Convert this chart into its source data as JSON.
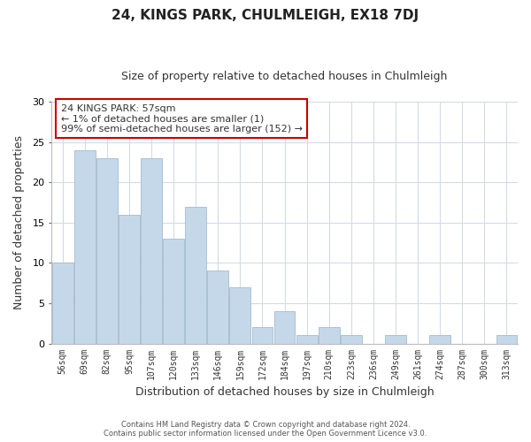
{
  "title": "24, KINGS PARK, CHULMLEIGH, EX18 7DJ",
  "subtitle": "Size of property relative to detached houses in Chulmleigh",
  "xlabel": "Distribution of detached houses by size in Chulmleigh",
  "ylabel": "Number of detached properties",
  "footer_line1": "Contains HM Land Registry data © Crown copyright and database right 2024.",
  "footer_line2": "Contains public sector information licensed under the Open Government Licence v3.0.",
  "annotation_title": "24 KINGS PARK: 57sqm",
  "annotation_line1": "← 1% of detached houses are smaller (1)",
  "annotation_line2": "99% of semi-detached houses are larger (152) →",
  "bar_labels": [
    "56sqm",
    "69sqm",
    "82sqm",
    "95sqm",
    "107sqm",
    "120sqm",
    "133sqm",
    "146sqm",
    "159sqm",
    "172sqm",
    "184sqm",
    "197sqm",
    "210sqm",
    "223sqm",
    "236sqm",
    "249sqm",
    "261sqm",
    "274sqm",
    "287sqm",
    "300sqm",
    "313sqm"
  ],
  "bar_values": [
    10,
    24,
    23,
    16,
    23,
    13,
    17,
    9,
    7,
    2,
    4,
    1,
    2,
    1,
    0,
    1,
    0,
    1,
    0,
    0,
    1
  ],
  "bar_color": "#c5d8ea",
  "bar_edge_color": "#a0bcd0",
  "ylim": [
    0,
    30
  ],
  "yticks": [
    0,
    5,
    10,
    15,
    20,
    25,
    30
  ],
  "annotation_box_edge": "#cc0000",
  "annotation_box_face": "#ffffff",
  "grid_color": "#d0dce8",
  "background_color": "#ffffff",
  "title_fontsize": 11,
  "subtitle_fontsize": 9
}
